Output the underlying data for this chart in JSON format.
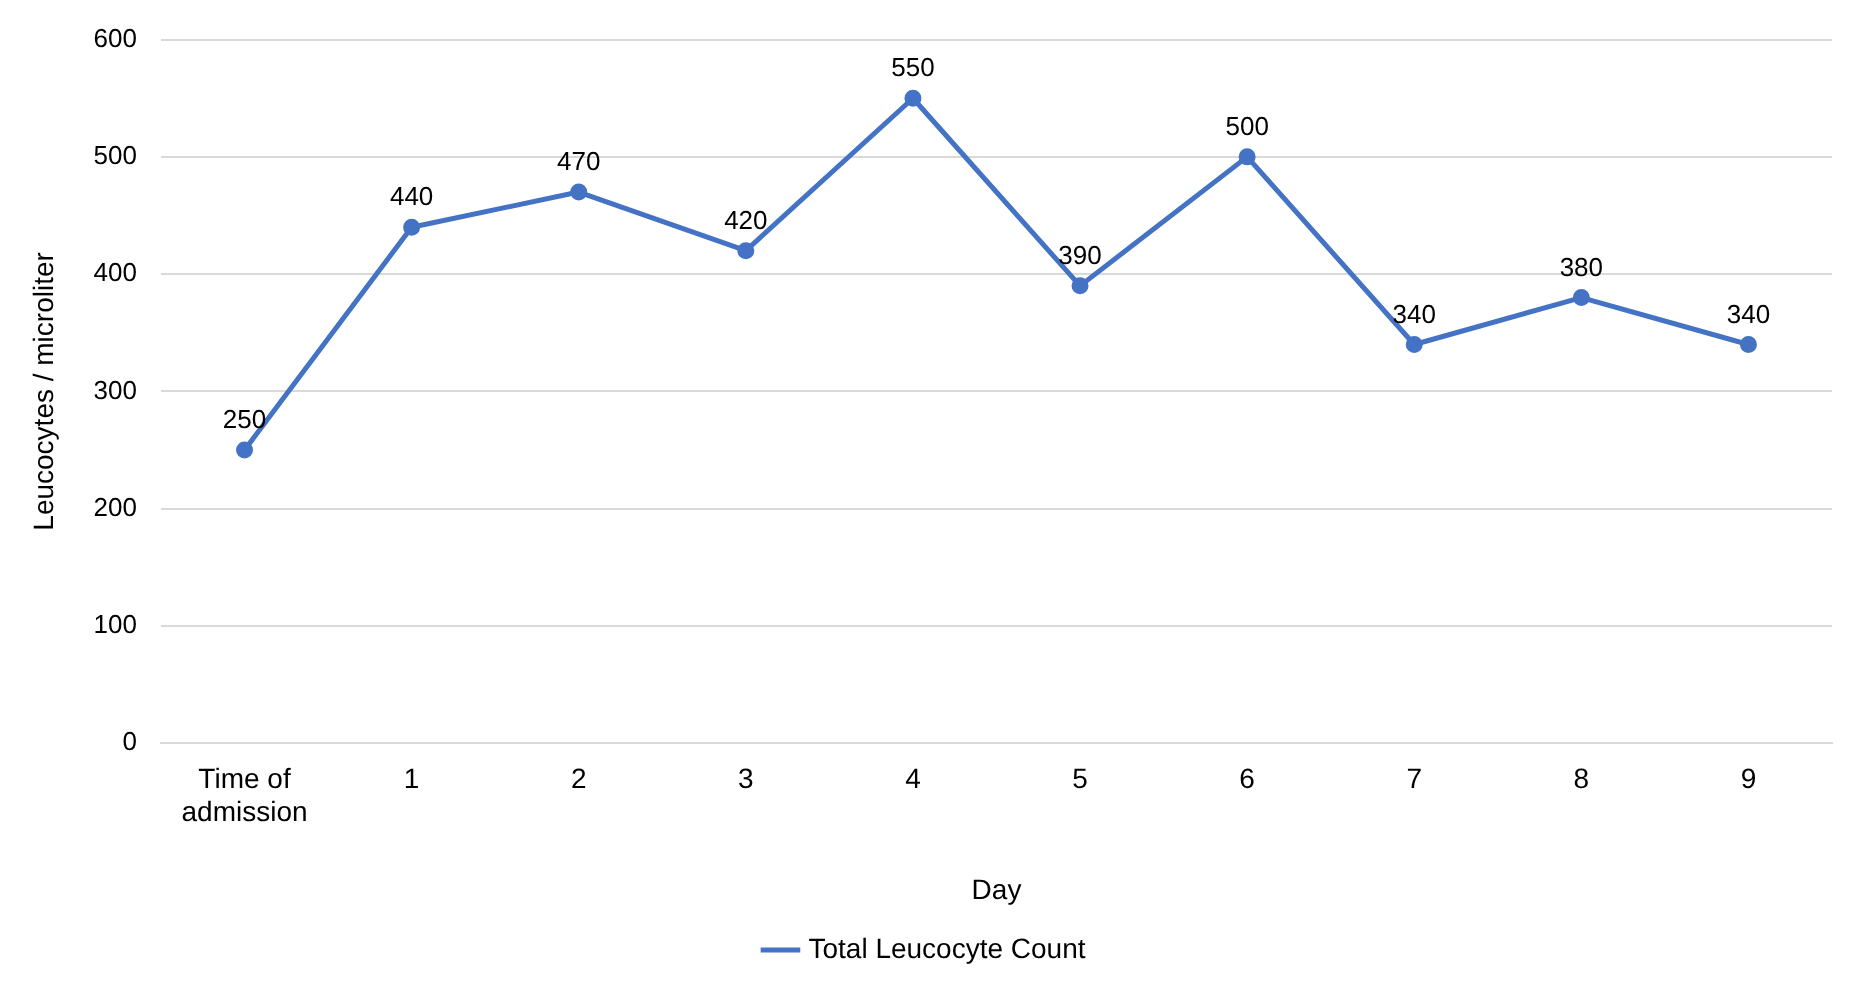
{
  "chart_data": {
    "type": "line",
    "xlabel": "Day",
    "ylabel": "Leucocytes / microliter",
    "categories": [
      "Time of admission",
      "1",
      "2",
      "3",
      "4",
      "5",
      "6",
      "7",
      "8",
      "9"
    ],
    "series": [
      {
        "name": "Total Leucocyte Count",
        "color": "#4472c4",
        "values": [
          250,
          440,
          470,
          420,
          550,
          390,
          500,
          340,
          380,
          340
        ]
      }
    ],
    "ylim": [
      0,
      600
    ],
    "yticks": [
      0,
      100,
      200,
      300,
      400,
      500,
      600
    ],
    "grid": "y",
    "legend": "bottom",
    "marker": "circle",
    "data_labels": true
  }
}
